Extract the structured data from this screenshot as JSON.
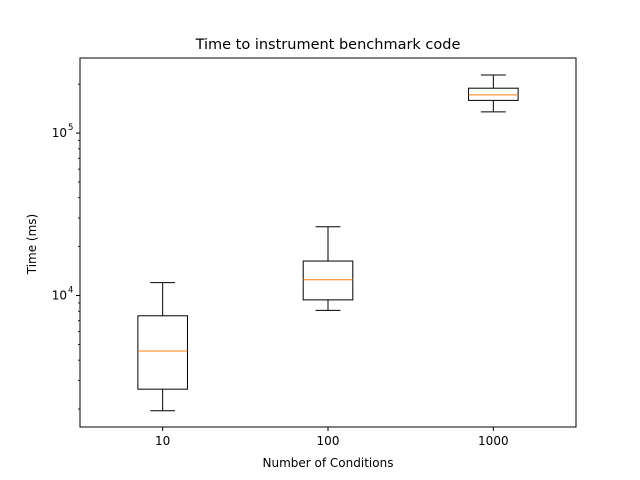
{
  "chart_data": {
    "type": "box",
    "title": "Time to instrument benchmark code",
    "xlabel": "Number of Conditions",
    "ylabel": "Time (ms)",
    "yscale": "log",
    "ylim": [
      1550,
      290000
    ],
    "categories": [
      "10",
      "100",
      "1000"
    ],
    "boxes": [
      {
        "category": "10",
        "whisker_low": 1950,
        "q1": 2650,
        "median": 4550,
        "q3": 7500,
        "whisker_high": 12000
      },
      {
        "category": "100",
        "whisker_low": 8100,
        "q1": 9400,
        "median": 12500,
        "q3": 16300,
        "whisker_high": 26500
      },
      {
        "category": "1000",
        "whisker_low": 135000,
        "q1": 159000,
        "median": 172000,
        "q3": 189000,
        "whisker_high": 228000
      }
    ],
    "y_major_ticks": [
      {
        "value": 10000,
        "base": "10",
        "exp": "4"
      },
      {
        "value": 100000,
        "base": "10",
        "exp": "5"
      }
    ],
    "grid": false,
    "colors": {
      "box": "#000000",
      "median": "#ff7f0e"
    }
  }
}
